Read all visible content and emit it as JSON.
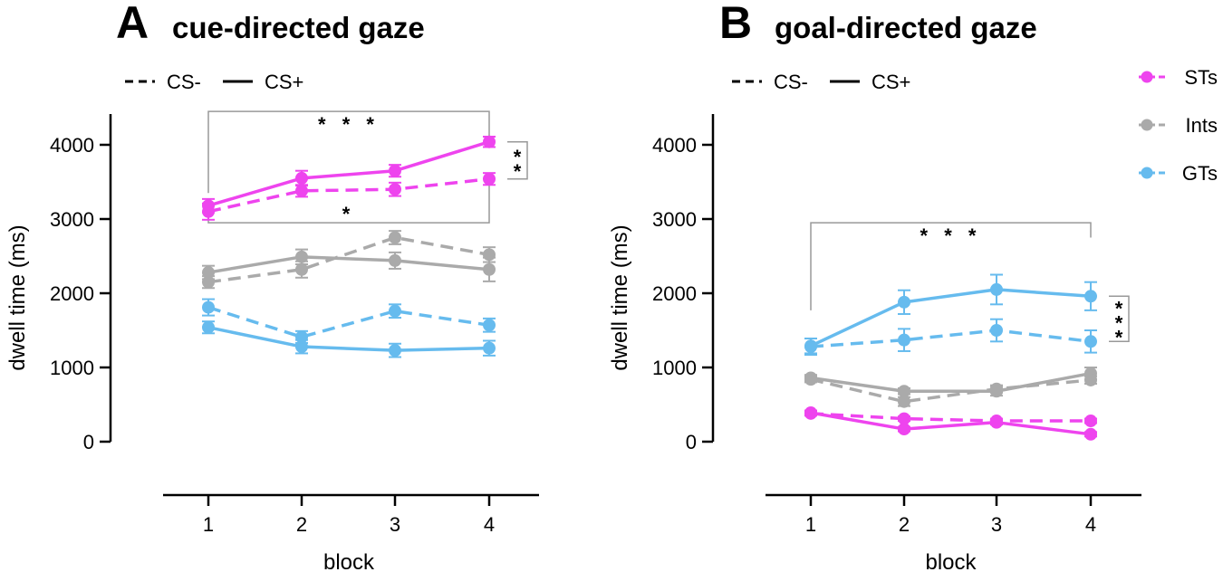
{
  "colors": {
    "STs": "#ee44ee",
    "Ints": "#aaaaaa",
    "GTs": "#66bbee",
    "axis": "#000000",
    "bracket": "#999999"
  },
  "legend": {
    "styles": [
      {
        "label": "CS-",
        "dash": true
      },
      {
        "label": "CS+",
        "dash": false
      }
    ],
    "groups": [
      {
        "label": "STs",
        "color_key": "STs"
      },
      {
        "label": "Ints",
        "color_key": "Ints"
      },
      {
        "label": "GTs",
        "color_key": "GTs"
      }
    ]
  },
  "chart_data": [
    {
      "type": "line",
      "panel": "A",
      "title": "cue-directed gaze",
      "xlabel": "block",
      "ylabel": "dwell time (ms)",
      "x": [
        1,
        2,
        3,
        4
      ],
      "ylim": [
        0,
        4400
      ],
      "yticks": [
        0,
        1000,
        2000,
        3000,
        4000
      ],
      "series": [
        {
          "name": "STs CS+",
          "group": "STs",
          "cs": "CS+",
          "values": [
            3180,
            3550,
            3650,
            4040
          ],
          "err": [
            90,
            100,
            80,
            70
          ]
        },
        {
          "name": "STs CS-",
          "group": "STs",
          "cs": "CS-",
          "values": [
            3100,
            3380,
            3400,
            3540
          ],
          "err": [
            110,
            80,
            90,
            80
          ]
        },
        {
          "name": "Ints CS+",
          "group": "Ints",
          "cs": "CS+",
          "values": [
            2280,
            2490,
            2440,
            2320
          ],
          "err": [
            90,
            100,
            110,
            160
          ]
        },
        {
          "name": "Ints CS-",
          "group": "Ints",
          "cs": "CS-",
          "values": [
            2150,
            2320,
            2750,
            2520
          ],
          "err": [
            80,
            110,
            90,
            100
          ]
        },
        {
          "name": "GTs CS+",
          "group": "GTs",
          "cs": "CS+",
          "values": [
            1540,
            1280,
            1230,
            1260
          ],
          "err": [
            80,
            90,
            90,
            100
          ]
        },
        {
          "name": "GTs CS-",
          "group": "GTs",
          "cs": "CS-",
          "values": [
            1810,
            1410,
            1760,
            1570
          ],
          "err": [
            110,
            80,
            90,
            90
          ]
        }
      ],
      "annotations": [
        {
          "kind": "bracket-top",
          "label": "* * *",
          "x1": 1,
          "x2": 4,
          "y": 4450,
          "from1": 3350,
          "from2": 4120
        },
        {
          "kind": "bracket-bottom",
          "label": "*",
          "x1": 1,
          "x2": 4,
          "y": 2950,
          "from1": 3020,
          "from2": 3460
        },
        {
          "kind": "bracket-side",
          "label": "* *",
          "x": 4,
          "y1": 4040,
          "y2": 3540
        }
      ]
    },
    {
      "type": "line",
      "panel": "B",
      "title": "goal-directed gaze",
      "xlabel": "block",
      "ylabel": "dwell time (ms)",
      "x": [
        1,
        2,
        3,
        4
      ],
      "ylim": [
        0,
        4400
      ],
      "yticks": [
        0,
        1000,
        2000,
        3000,
        4000
      ],
      "series": [
        {
          "name": "GTs CS+",
          "group": "GTs",
          "cs": "CS+",
          "values": [
            1290,
            1880,
            2050,
            1960
          ],
          "err": [
            100,
            160,
            200,
            190
          ]
        },
        {
          "name": "GTs CS-",
          "group": "GTs",
          "cs": "CS-",
          "values": [
            1280,
            1370,
            1500,
            1350
          ],
          "err": [
            110,
            150,
            150,
            150
          ]
        },
        {
          "name": "Ints CS+",
          "group": "Ints",
          "cs": "CS+",
          "values": [
            860,
            680,
            680,
            920
          ],
          "err": [
            40,
            40,
            60,
            80
          ]
        },
        {
          "name": "Ints CS-",
          "group": "Ints",
          "cs": "CS-",
          "values": [
            840,
            540,
            710,
            830
          ],
          "err": [
            40,
            60,
            50,
            50
          ]
        },
        {
          "name": "STs CS+",
          "group": "STs",
          "cs": "CS+",
          "values": [
            390,
            170,
            260,
            100
          ],
          "err": [
            30,
            30,
            30,
            30
          ]
        },
        {
          "name": "STs CS-",
          "group": "STs",
          "cs": "CS-",
          "values": [
            380,
            310,
            280,
            280
          ],
          "err": [
            30,
            30,
            30,
            30
          ]
        }
      ],
      "annotations": [
        {
          "kind": "bracket-top",
          "label": "* * *",
          "x1": 1,
          "x2": 4,
          "y": 2950,
          "from1": 1770,
          "from2": 2750
        },
        {
          "kind": "bracket-side",
          "label": "* * *",
          "x": 4,
          "y1": 1960,
          "y2": 1350
        }
      ]
    }
  ]
}
